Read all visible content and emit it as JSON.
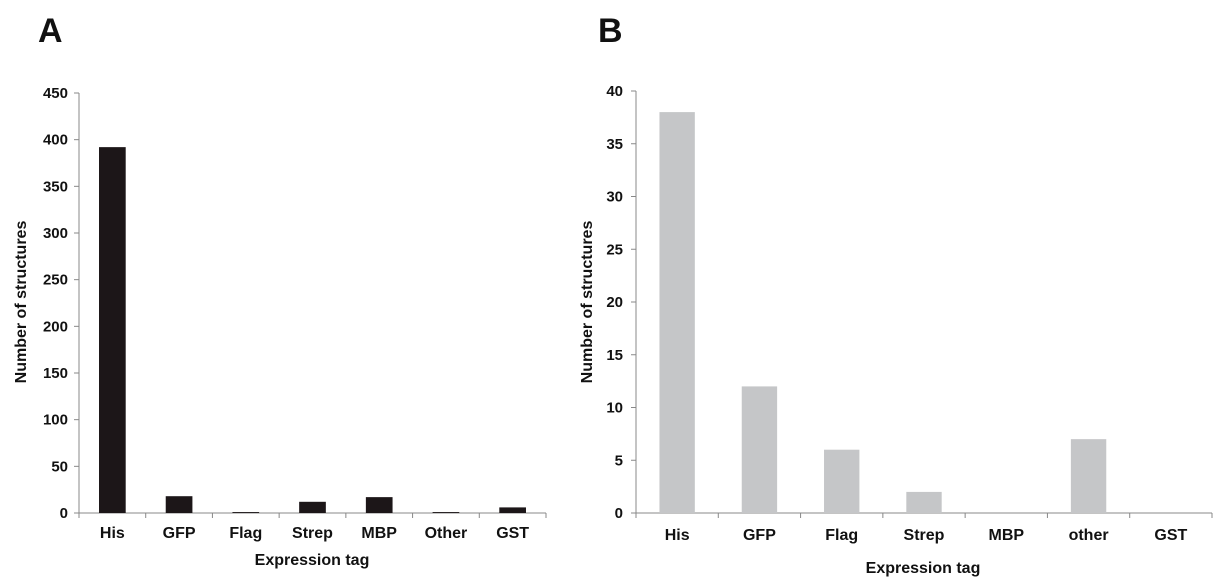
{
  "chart_data": [
    {
      "panel": "A",
      "type": "bar",
      "xlabel": "Expression tag",
      "ylabel": "Number of structures",
      "ylim": [
        0,
        450
      ],
      "yticks": [
        0,
        50,
        100,
        150,
        200,
        250,
        300,
        350,
        400,
        450
      ],
      "categories": [
        "His",
        "GFP",
        "Flag",
        "Strep",
        "MBP",
        "Other",
        "GST"
      ],
      "values": [
        392,
        18,
        1,
        12,
        17,
        1,
        6
      ],
      "bar_color": "#1c1618",
      "grid": false,
      "legend": "none"
    },
    {
      "panel": "B",
      "type": "bar",
      "xlabel": "Expression tag",
      "ylabel": "Number of structures",
      "ylim": [
        0,
        40
      ],
      "yticks": [
        0,
        5,
        10,
        15,
        20,
        25,
        30,
        35,
        40
      ],
      "categories": [
        "His",
        "GFP",
        "Flag",
        "Strep",
        "MBP",
        "other",
        "GST"
      ],
      "values": [
        38,
        12,
        6,
        2,
        0,
        7,
        0
      ],
      "bar_color": "#c5c6c8",
      "grid": false,
      "legend": "none"
    }
  ]
}
